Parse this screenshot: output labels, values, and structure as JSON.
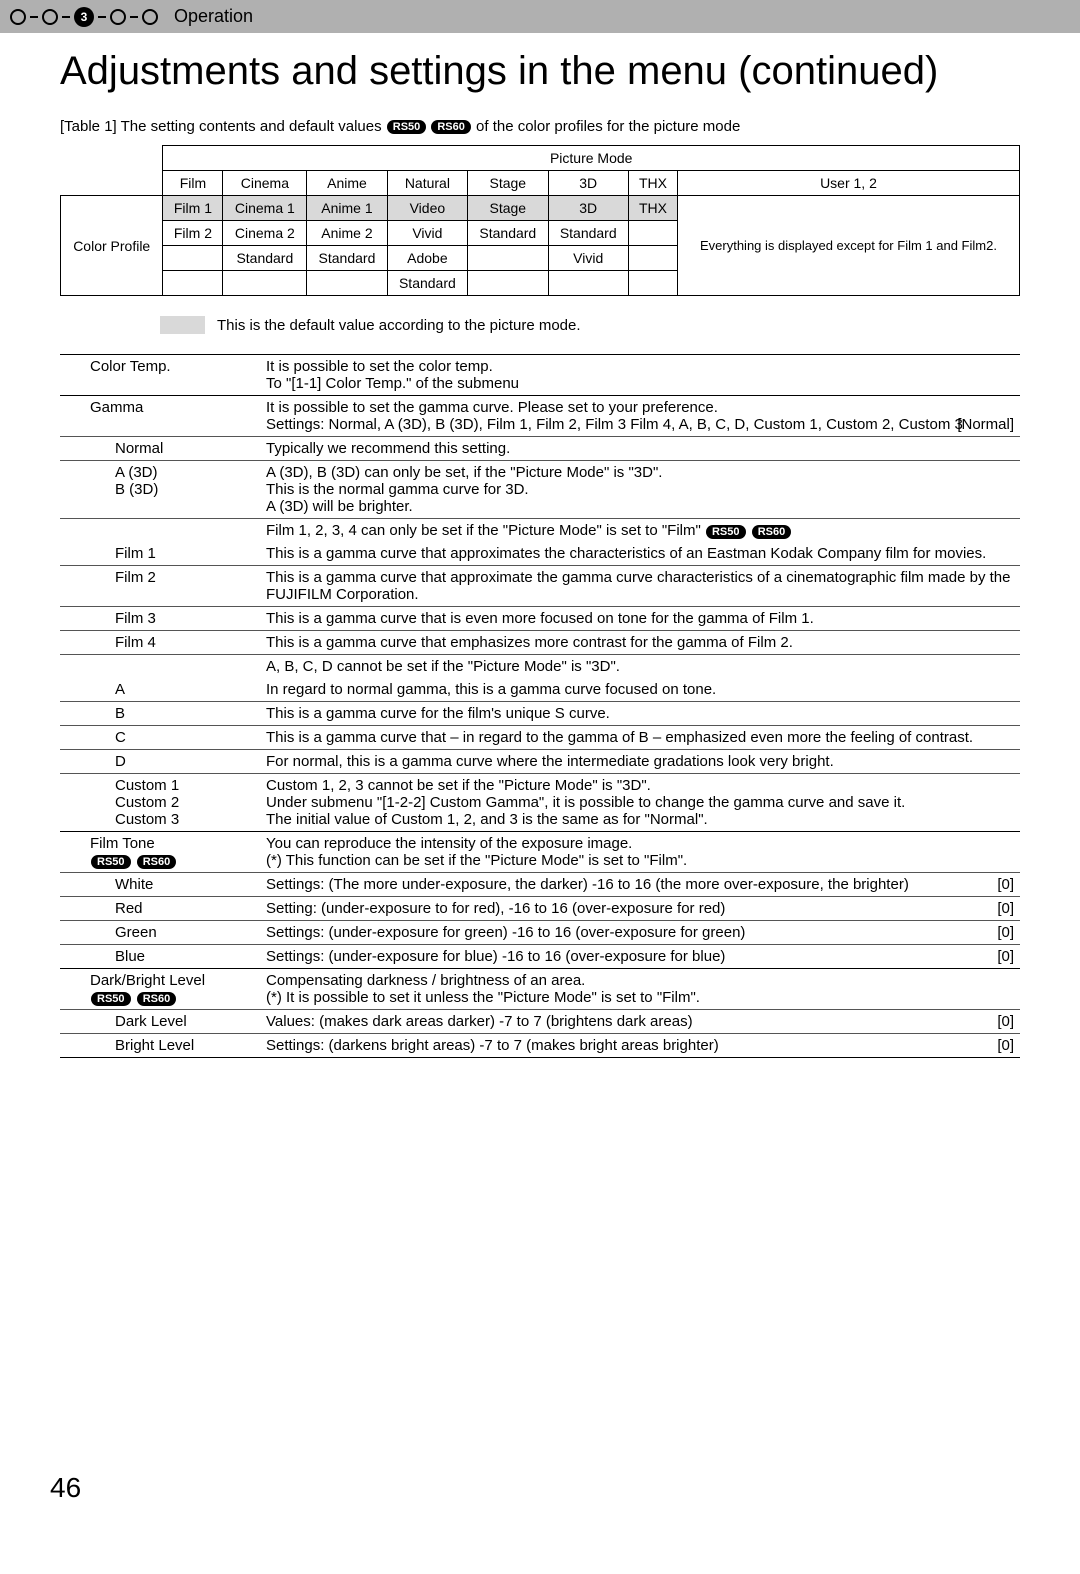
{
  "header": {
    "step_number": "3",
    "label": "Operation"
  },
  "title": "Adjustments and settings in the menu (continued)",
  "table1": {
    "caption_prefix": "[Table 1] The setting contents and default values ",
    "caption_suffix": " of the color profiles for the picture mode",
    "badges": [
      "RS50",
      "RS60"
    ],
    "picture_mode_header": "Picture Mode",
    "row_label": "Color Profile",
    "columns": [
      "Film",
      "Cinema",
      "Anime",
      "Natural",
      "Stage",
      "3D",
      "THX",
      "User 1, 2"
    ],
    "rows": [
      [
        "Film 1",
        "Cinema 1",
        "Anime 1",
        "Video",
        "Stage",
        "3D",
        "THX",
        ""
      ],
      [
        "Film 2",
        "Cinema 2",
        "Anime 2",
        "Vivid",
        "Standard",
        "Standard",
        "",
        ""
      ],
      [
        "",
        "Standard",
        "Standard",
        "Adobe",
        "",
        "Vivid",
        "",
        ""
      ],
      [
        "",
        "",
        "",
        "Standard",
        "",
        "",
        "",
        ""
      ]
    ],
    "user_note": "Everything is displayed except for Film 1 and Film2.",
    "default_note": "This is the default value according to the picture mode."
  },
  "settings": {
    "color_temp": {
      "label": "Color Temp.",
      "desc": "It is possible to set the color temp.\nTo \"[1-1] Color Temp.\" of the submenu"
    },
    "gamma": {
      "label": "Gamma",
      "desc": "It is possible to set the gamma curve. Please set to your preference.\nSettings: Normal, A (3D), B (3D), Film 1, Film 2, Film 3 Film 4, A, B, C, D, Custom 1, Custom 2, Custom 3",
      "default": "[Normal]",
      "items": [
        {
          "label": "Normal",
          "desc": "Typically we recommend this setting.",
          "thin": true
        },
        {
          "label": "A (3D)\nB (3D)",
          "desc": "A (3D), B (3D) can only be set, if the \"Picture Mode\" is \"3D\".\nThis is the normal gamma curve for 3D.\nA (3D) will be brighter.",
          "thin": true
        },
        {
          "label": "",
          "desc_badges": true,
          "desc": "Film 1, 2, 3, 4 can only be set if the \"Picture Mode\" is set to \"Film\" ",
          "thin": true
        },
        {
          "label": "Film 1",
          "desc": "This is a gamma curve   that approximates the characteristics of an Eastman Kodak Company film for movies."
        },
        {
          "label": "Film 2",
          "desc": "This is a gamma curve that approximate the gamma curve characteristics of a cinematographic film made by the FUJIFILM Corporation.",
          "thin": true
        },
        {
          "label": "Film 3",
          "desc": "This is a gamma curve that is even more focused on tone for the gamma of Film 1.",
          "thin": true
        },
        {
          "label": "Film 4",
          "desc": "This is a gamma curve that emphasizes more contrast for the gamma of Film 2.",
          "thin": true
        },
        {
          "label": "",
          "desc": "A, B, C, D cannot be set if the \"Picture Mode\" is \"3D\".",
          "thin": true
        },
        {
          "label": "A",
          "desc": "In regard to normal gamma, this is a gamma curve focused on tone."
        },
        {
          "label": "B",
          "desc": "This is a gamma curve for the film's unique S curve.",
          "thin": true
        },
        {
          "label": "C",
          "desc": "This is a gamma curve that – in regard to the gamma of B – emphasized even more the feeling of contrast.",
          "thin": true
        },
        {
          "label": "D",
          "desc": "For normal, this is a gamma curve where the intermediate gradations look very bright.",
          "thin": true
        },
        {
          "label": "Custom 1\nCustom 2\nCustom 3",
          "desc": "Custom 1, 2, 3 cannot be set if the \"Picture Mode\" is \"3D\".\nUnder submenu \"[1-2-2] Custom Gamma\", it is possible to change the gamma curve and save it.\nThe initial value of Custom 1, 2, and 3 is the same as for \"Normal\".",
          "thin": true
        }
      ]
    },
    "film_tone": {
      "label": "Film Tone",
      "badges": [
        "RS50",
        "RS60"
      ],
      "desc": "You can reproduce the intensity of the exposure image.\n(*) This function can be set if the \"Picture Mode\" is set to \"Film\".",
      "items": [
        {
          "label": "White",
          "desc": "Settings: (The more under-exposure, the darker) -16 to 16 (the more over-exposure, the brighter)",
          "default": "[0]",
          "thin": true
        },
        {
          "label": "Red",
          "desc": "Setting: (under-exposure to for red), -16 to 16  (over-exposure for red)",
          "default": "[0]",
          "thin": true
        },
        {
          "label": "Green",
          "desc": "Settings: (under-exposure for green) -16 to 16 (over-exposure for green)",
          "default": "[0]",
          "thin": true
        },
        {
          "label": "Blue",
          "desc": "Settings: (under-exposure for blue) -16 to 16 (over-exposure for blue)",
          "default": "[0]",
          "thin": true
        }
      ]
    },
    "dark_bright": {
      "label": "Dark/Bright Level",
      "badges": [
        "RS50",
        "RS60"
      ],
      "desc": "Compensating darkness / brightness of an area.\n(*) It is possible to set it unless the \"Picture Mode\" is set to \"Film\".",
      "items": [
        {
          "label": "Dark Level",
          "desc": "Values: (makes dark areas darker) -7 to 7 (brightens dark areas)",
          "default": "[0]",
          "thin": true
        },
        {
          "label": "Bright Level",
          "desc": "Settings: (darkens bright areas) -7 to 7 (makes bright areas brighter)",
          "default": "[0]",
          "thin": true
        }
      ]
    }
  },
  "page_number": "46"
}
